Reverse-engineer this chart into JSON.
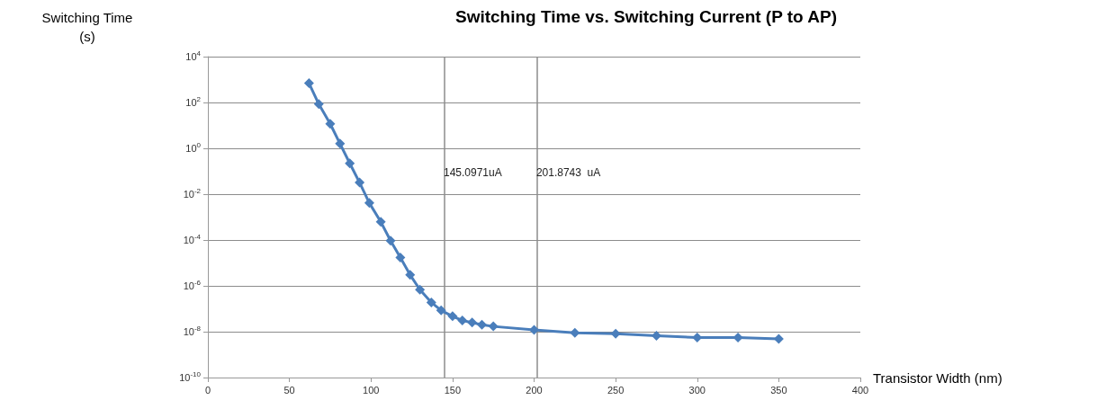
{
  "chart_data": {
    "type": "line",
    "title": "Switching Time vs. Switching Current (P to AP)",
    "xlabel": "Transistor Width (nm)",
    "ylabel": "Switching Time\n(s)",
    "x": [
      62,
      68,
      75,
      81,
      87,
      93,
      99,
      106,
      112,
      118,
      124,
      130,
      137,
      143,
      150,
      156,
      162,
      168,
      175,
      200,
      225,
      250,
      275,
      300,
      325,
      350
    ],
    "series": [
      {
        "color": "#4a7ebb",
        "values": [
          690,
          85,
          11.7,
          1.6,
          0.22,
          0.032,
          0.0041,
          0.00062,
          9.3e-05,
          1.7e-05,
          3e-06,
          6.8e-07,
          1.9e-07,
          8.5e-08,
          4.7e-08,
          3.1e-08,
          2.5e-08,
          2e-08,
          1.7e-08,
          1.2e-08,
          9e-09,
          8.1e-09,
          6.6e-09,
          5.6e-09,
          5.6e-09,
          4.9e-09
        ]
      }
    ],
    "xlim": [
      0,
      400
    ],
    "xticks": [
      0,
      50,
      100,
      150,
      200,
      250,
      300,
      350,
      400
    ],
    "ylim": [
      1e-10,
      10000
    ],
    "yticks": [
      {
        "value": 1e-10,
        "label": "10$^{-10}$"
      },
      {
        "value": 1e-08,
        "label": "10$^{-8}$"
      },
      {
        "value": 1e-06,
        "label": "10$^{-6}$"
      },
      {
        "value": 0.0001,
        "label": "10$^{-4}$"
      },
      {
        "value": 0.01,
        "label": "10$^{-2}$"
      },
      {
        "value": 1,
        "label": "10$^{0}$"
      },
      {
        "value": 100,
        "label": "10$^{2}$"
      },
      {
        "value": 10000,
        "label": "10$^{4}$"
      }
    ],
    "log": "y",
    "grid": "y",
    "marker": "diamond",
    "line_style": "solid",
    "ref_lines": [
      {
        "axis": "x",
        "value": 145.0971,
        "label": "145.0971uA",
        "color": "#8c8c8c"
      },
      {
        "axis": "x",
        "value": 201.8743,
        "label": "201.8743  uA",
        "color": "#8c8c8c"
      }
    ]
  }
}
